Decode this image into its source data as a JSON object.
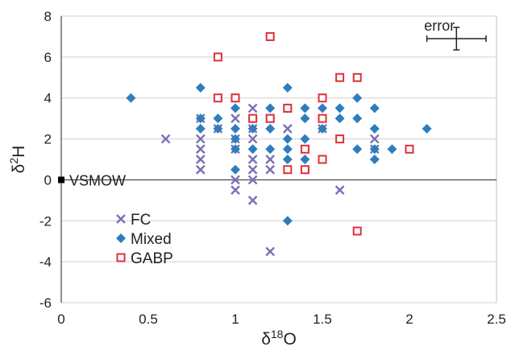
{
  "chart_data": {
    "type": "scatter",
    "xlabel": "δ18O",
    "ylabel": "δ2H",
    "xlim": [
      0,
      2.5
    ],
    "ylim": [
      -6,
      8
    ],
    "x_ticks": [
      "0",
      "0.5",
      "1",
      "1.5",
      "2",
      "2.5"
    ],
    "y_ticks": [
      "-6",
      "-4",
      "-2",
      "0",
      "2",
      "4",
      "6",
      "8"
    ],
    "grid": "horizontal",
    "legend_position": "bottom-left",
    "series": [
      {
        "name": "FC",
        "marker": "x",
        "color": "#7b6fb8",
        "points": [
          [
            0.6,
            2.0
          ],
          [
            0.8,
            3.0
          ],
          [
            0.8,
            2.0
          ],
          [
            0.8,
            1.5
          ],
          [
            0.8,
            1.0
          ],
          [
            0.8,
            0.5
          ],
          [
            0.9,
            2.5
          ],
          [
            1.0,
            3.0
          ],
          [
            1.0,
            2.0
          ],
          [
            1.0,
            1.5
          ],
          [
            1.0,
            0.0
          ],
          [
            1.0,
            -0.5
          ],
          [
            1.1,
            3.5
          ],
          [
            1.1,
            2.5
          ],
          [
            1.1,
            2.0
          ],
          [
            1.1,
            1.0
          ],
          [
            1.1,
            0.5
          ],
          [
            1.1,
            0.0
          ],
          [
            1.1,
            -1.0
          ],
          [
            1.2,
            3.0
          ],
          [
            1.2,
            1.0
          ],
          [
            1.2,
            0.5
          ],
          [
            1.2,
            -3.5
          ],
          [
            1.3,
            3.5
          ],
          [
            1.3,
            2.5
          ],
          [
            1.4,
            1.5
          ],
          [
            1.5,
            2.5
          ],
          [
            1.6,
            -0.5
          ],
          [
            1.8,
            2.0
          ],
          [
            1.8,
            1.5
          ]
        ]
      },
      {
        "name": "Mixed",
        "marker": "diamond",
        "color": "#2e7dbf",
        "points": [
          [
            0.4,
            4.0
          ],
          [
            0.8,
            4.5
          ],
          [
            0.8,
            3.0
          ],
          [
            0.8,
            2.5
          ],
          [
            0.9,
            3.0
          ],
          [
            0.9,
            2.5
          ],
          [
            1.0,
            4.0
          ],
          [
            1.0,
            3.5
          ],
          [
            1.0,
            2.5
          ],
          [
            1.0,
            2.0
          ],
          [
            1.0,
            1.5
          ],
          [
            1.0,
            0.5
          ],
          [
            1.1,
            3.0
          ],
          [
            1.1,
            2.5
          ],
          [
            1.1,
            1.5
          ],
          [
            1.2,
            3.5
          ],
          [
            1.2,
            3.0
          ],
          [
            1.2,
            2.5
          ],
          [
            1.2,
            1.5
          ],
          [
            1.3,
            4.5
          ],
          [
            1.3,
            3.5
          ],
          [
            1.3,
            2.0
          ],
          [
            1.3,
            1.5
          ],
          [
            1.3,
            1.0
          ],
          [
            1.3,
            -2.0
          ],
          [
            1.4,
            3.5
          ],
          [
            1.4,
            3.0
          ],
          [
            1.4,
            2.0
          ],
          [
            1.4,
            1.0
          ],
          [
            1.4,
            0.5
          ],
          [
            1.5,
            3.5
          ],
          [
            1.5,
            2.5
          ],
          [
            1.6,
            3.5
          ],
          [
            1.6,
            3.0
          ],
          [
            1.7,
            4.0
          ],
          [
            1.7,
            3.0
          ],
          [
            1.7,
            1.5
          ],
          [
            1.8,
            3.5
          ],
          [
            1.8,
            2.5
          ],
          [
            1.8,
            1.5
          ],
          [
            1.8,
            1.0
          ],
          [
            1.9,
            1.5
          ],
          [
            2.1,
            2.5
          ]
        ]
      },
      {
        "name": "GABP",
        "marker": "square-open",
        "color": "#e0303a",
        "points": [
          [
            0.9,
            6.0
          ],
          [
            0.9,
            4.0
          ],
          [
            1.0,
            4.0
          ],
          [
            1.1,
            3.0
          ],
          [
            1.2,
            7.0
          ],
          [
            1.2,
            3.0
          ],
          [
            1.3,
            3.5
          ],
          [
            1.3,
            0.5
          ],
          [
            1.4,
            1.5
          ],
          [
            1.4,
            0.5
          ],
          [
            1.5,
            4.0
          ],
          [
            1.5,
            3.0
          ],
          [
            1.5,
            1.0
          ],
          [
            1.6,
            5.0
          ],
          [
            1.6,
            2.0
          ],
          [
            1.7,
            5.0
          ],
          [
            1.7,
            -2.5
          ],
          [
            2.0,
            1.5
          ]
        ]
      }
    ],
    "reference_point": {
      "label": "VSMOW",
      "x": 0,
      "y": 0,
      "color": "#000000"
    },
    "error_bar": {
      "label": "error",
      "x": 2.27,
      "y": 6.9,
      "x_half_width": 0.17,
      "y_half_width": 0.55
    }
  }
}
